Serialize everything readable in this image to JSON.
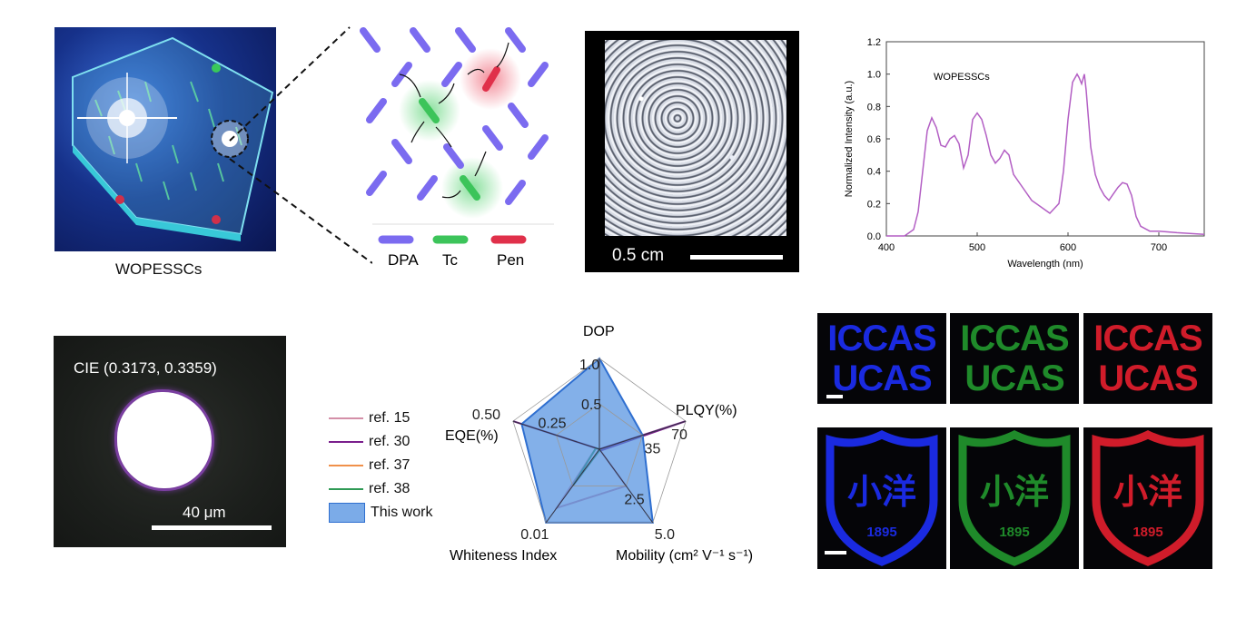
{
  "panel_a": {
    "caption": "WOPESSCs",
    "legend": [
      "DPA",
      "Tc",
      "Pen"
    ],
    "colors": {
      "dpa": "#7b6bf0",
      "tc": "#3cc45a",
      "pen": "#e0304a"
    }
  },
  "panel_b": {
    "scale_label": "0.5 cm"
  },
  "panel_c": {
    "chart_data": {
      "type": "line",
      "xlabel": "Wavelength (nm)",
      "ylabel": "Normalized Intensity (a.u.)",
      "xlim": [
        400,
        750
      ],
      "ylim": [
        0.0,
        1.2
      ],
      "x_ticks": [
        400,
        500,
        600,
        700
      ],
      "y_ticks": [
        0.0,
        0.2,
        0.4,
        0.6,
        0.8,
        1.0,
        1.2
      ],
      "y_tick_labels": [
        "0.0",
        "0.2",
        "0.4",
        "0.6",
        "0.8",
        "1.0",
        "1.2"
      ],
      "annotation": "WOPESSCs",
      "series": [
        {
          "color": "#b35fc4",
          "x": [
            400,
            420,
            430,
            435,
            440,
            445,
            450,
            455,
            460,
            465,
            470,
            475,
            480,
            485,
            490,
            495,
            500,
            505,
            510,
            515,
            520,
            525,
            530,
            535,
            540,
            550,
            560,
            570,
            580,
            590,
            595,
            600,
            605,
            610,
            612,
            615,
            618,
            620,
            625,
            630,
            635,
            640,
            645,
            650,
            655,
            660,
            665,
            670,
            675,
            680,
            690,
            700,
            720,
            750
          ],
          "y": [
            0.0,
            0.0,
            0.04,
            0.15,
            0.4,
            0.65,
            0.73,
            0.67,
            0.56,
            0.55,
            0.6,
            0.62,
            0.57,
            0.42,
            0.5,
            0.72,
            0.76,
            0.72,
            0.62,
            0.5,
            0.45,
            0.48,
            0.53,
            0.5,
            0.38,
            0.3,
            0.22,
            0.18,
            0.14,
            0.2,
            0.4,
            0.72,
            0.95,
            1.0,
            0.98,
            0.94,
            1.0,
            0.9,
            0.55,
            0.38,
            0.3,
            0.25,
            0.22,
            0.26,
            0.3,
            0.33,
            0.32,
            0.25,
            0.12,
            0.06,
            0.03,
            0.03,
            0.02,
            0.01
          ]
        }
      ]
    }
  },
  "panel_d": {
    "cie_label": "CIE (0.3173, 0.3359)",
    "scale_label": "40 μm"
  },
  "panel_e": {
    "chart_data": {
      "type": "radar",
      "axes": [
        {
          "name": "DOP",
          "ticks": [
            "1.0",
            "0.5"
          ]
        },
        {
          "name": "PLQY(%)",
          "ticks": [
            "70",
            "35"
          ]
        },
        {
          "name": "Mobility (cm² V⁻¹ s⁻¹)",
          "ticks": [
            "5.0",
            "2.5"
          ]
        },
        {
          "name": "Whiteness Index",
          "ticks": [
            "0.01"
          ]
        },
        {
          "name": "EQE(%)",
          "ticks": [
            "0.50",
            "0.25"
          ]
        }
      ],
      "axis_max": [
        1.0,
        70,
        5.0,
        0.01,
        0.5
      ],
      "series": [
        {
          "name": "ref. 15",
          "color": "#d48fa8",
          "values": [
            0.0,
            0.0,
            2.5,
            0.008,
            0.02
          ]
        },
        {
          "name": "ref. 30",
          "color": "#7a1f8c",
          "values": [
            0.0,
            70,
            0.1,
            0.0,
            0.5
          ]
        },
        {
          "name": "ref. 37",
          "color": "#f0904a",
          "values": [
            0.0,
            0.0,
            0.0,
            0.0,
            0.0
          ]
        },
        {
          "name": "ref. 38",
          "color": "#2f9a55",
          "values": [
            0.0,
            0.0,
            0.05,
            0.005,
            0.02
          ]
        },
        {
          "name": "This work",
          "color": "#4f8fe0",
          "values": [
            1.0,
            35,
            5.0,
            0.01,
            0.45
          ]
        }
      ]
    }
  },
  "panel_f": {
    "text_lines": [
      "ICCAS",
      "UCAS"
    ],
    "tile_colors": [
      "#1a2ae0",
      "#1f8a2a",
      "#d01c2a"
    ],
    "emblem_year": "1895",
    "emblem_chars": "小洋"
  }
}
